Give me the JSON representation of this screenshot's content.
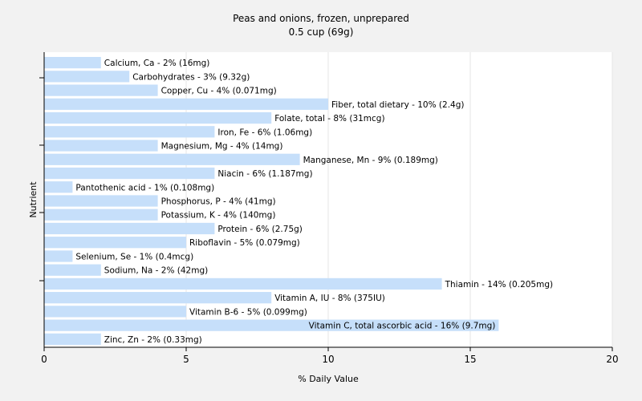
{
  "chart_data": {
    "type": "bar",
    "orientation": "horizontal",
    "title": "Peas and onions, frozen, unprepared",
    "subtitle": "0.5 cup (69g)",
    "xlabel": "% Daily Value",
    "ylabel": "Nutrient",
    "xlim": [
      0,
      20
    ],
    "xticks": [
      0,
      5,
      10,
      15,
      20
    ],
    "grid": true,
    "bar_color": "#c6dffa",
    "categories": [
      "Calcium, Ca",
      "Carbohydrates",
      "Copper, Cu",
      "Fiber, total dietary",
      "Folate, total",
      "Iron, Fe",
      "Magnesium, Mg",
      "Manganese, Mn",
      "Niacin",
      "Pantothenic acid",
      "Phosphorus, P",
      "Potassium, K",
      "Protein",
      "Riboflavin",
      "Selenium, Se",
      "Sodium, Na",
      "Thiamin",
      "Vitamin A, IU",
      "Vitamin B-6",
      "Vitamin C, total ascorbic acid",
      "Zinc, Zn"
    ],
    "values": [
      2,
      3,
      4,
      10,
      8,
      6,
      4,
      9,
      6,
      1,
      4,
      4,
      6,
      5,
      1,
      2,
      14,
      8,
      5,
      16,
      2
    ],
    "labels": [
      "Calcium, Ca - 2% (16mg)",
      "Carbohydrates - 3% (9.32g)",
      "Copper, Cu - 4% (0.071mg)",
      "Fiber, total dietary - 10% (2.4g)",
      "Folate, total - 8% (31mcg)",
      "Iron, Fe - 6% (1.06mg)",
      "Magnesium, Mg - 4% (14mg)",
      "Manganese, Mn - 9% (0.189mg)",
      "Niacin - 6% (1.187mg)",
      "Pantothenic acid - 1% (0.108mg)",
      "Phosphorus, P - 4% (41mg)",
      "Potassium, K - 4% (140mg)",
      "Protein - 6% (2.75g)",
      "Riboflavin - 5% (0.079mg)",
      "Selenium, Se - 1% (0.4mcg)",
      "Sodium, Na - 2% (42mg)",
      "Thiamin - 14% (0.205mg)",
      "Vitamin A, IU - 8% (375IU)",
      "Vitamin B-6 - 5% (0.099mg)",
      "Vitamin C, total ascorbic acid - 16% (9.7mg)",
      "Zinc, Zn - 2% (0.33mg)"
    ]
  }
}
